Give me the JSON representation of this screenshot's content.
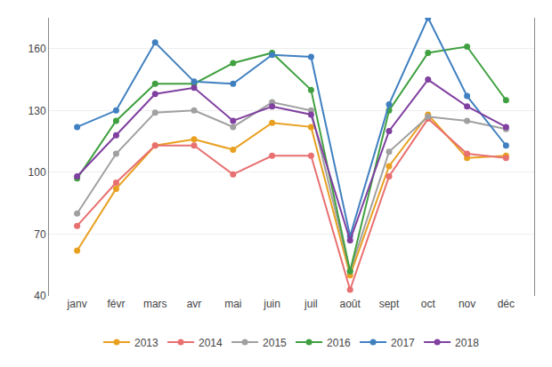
{
  "chart_data": {
    "type": "line",
    "categories": [
      "janv",
      "févr",
      "mars",
      "avr",
      "mai",
      "juin",
      "juil",
      "août",
      "sept",
      "oct",
      "nov",
      "déc"
    ],
    "series": [
      {
        "name": "2013",
        "color": "#E8A020",
        "values": [
          62,
          92,
          113,
          116,
          111,
          124,
          122,
          50,
          103,
          128,
          107,
          108
        ]
      },
      {
        "name": "2014",
        "color": "#E87070",
        "values": [
          74,
          95,
          113,
          113,
          99,
          108,
          108,
          43,
          98,
          126,
          109,
          107
        ]
      },
      {
        "name": "2015",
        "color": "#A0A0A0",
        "values": [
          80,
          109,
          129,
          130,
          122,
          134,
          130,
          52,
          110,
          127,
          125,
          121
        ]
      },
      {
        "name": "2016",
        "color": "#40A040",
        "values": [
          97,
          125,
          143,
          143,
          153,
          158,
          140,
          52,
          130,
          158,
          161,
          135
        ]
      },
      {
        "name": "2017",
        "color": "#4080C0",
        "values": [
          122,
          130,
          163,
          144,
          143,
          157,
          156,
          69,
          133,
          175,
          137,
          113
        ]
      },
      {
        "name": "2018",
        "color": "#8040A0",
        "values": [
          98,
          118,
          138,
          141,
          125,
          132,
          128,
          67,
          120,
          145,
          132,
          122
        ]
      }
    ],
    "ylim": [
      40,
      175
    ],
    "yticks": [
      40,
      70,
      100,
      130,
      160
    ],
    "grid": true,
    "legend": "bottom",
    "marker": "circle"
  }
}
